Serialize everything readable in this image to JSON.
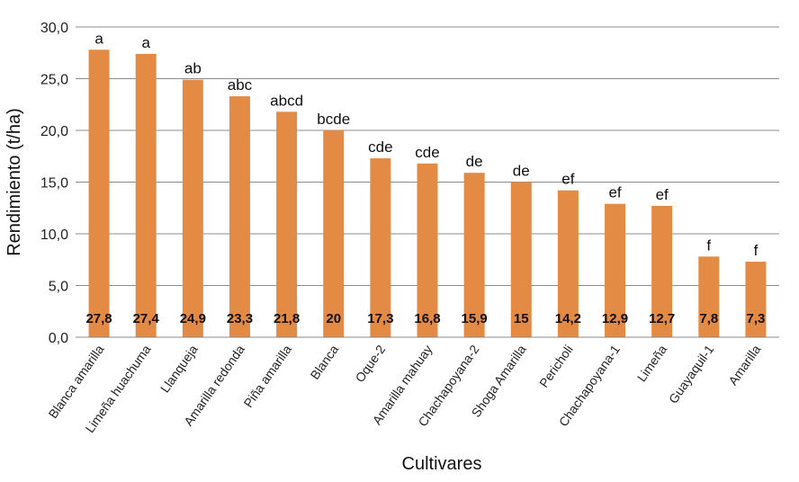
{
  "chart_data": {
    "type": "bar",
    "xlabel": "Cultivares",
    "ylabel": "Rendimiento (t/ha)",
    "ylim": [
      0,
      30
    ],
    "yticks": [
      "0,0",
      "5,0",
      "10,0",
      "15,0",
      "20,0",
      "25,0",
      "30,0"
    ],
    "grid": true,
    "colors": {
      "bar": "#E38A45",
      "grid": "#8c8c8c",
      "axis": "#888888"
    },
    "categories": [
      "Blanca amarilla",
      "Limeña huachuma",
      "Llanqueja",
      "Amarilla redonda",
      "Piña amarilla",
      "Blanca",
      "Oque-2",
      "Amarilla mahuay",
      "Chachapoyana-2",
      "Shoga Amarilla",
      "Pericholi",
      "Chachapoyana-1",
      "Limeña",
      "Guayaquil-1",
      "Amarilla"
    ],
    "values": [
      27.8,
      27.4,
      24.9,
      23.3,
      21.8,
      20,
      17.3,
      16.8,
      15.9,
      15,
      14.2,
      12.9,
      12.7,
      7.8,
      7.3
    ],
    "value_labels": [
      "27,8",
      "27,4",
      "24,9",
      "23,3",
      "21,8",
      "20",
      "17,3",
      "16,8",
      "15,9",
      "15",
      "14,2",
      "12,9",
      "12,7",
      "7,8",
      "7,3"
    ],
    "significance_labels": [
      "a",
      "a",
      "ab",
      "abc",
      "abcd",
      "bcde",
      "cde",
      "cde",
      "de",
      "de",
      "ef",
      "ef",
      "ef",
      "f",
      "f"
    ]
  }
}
